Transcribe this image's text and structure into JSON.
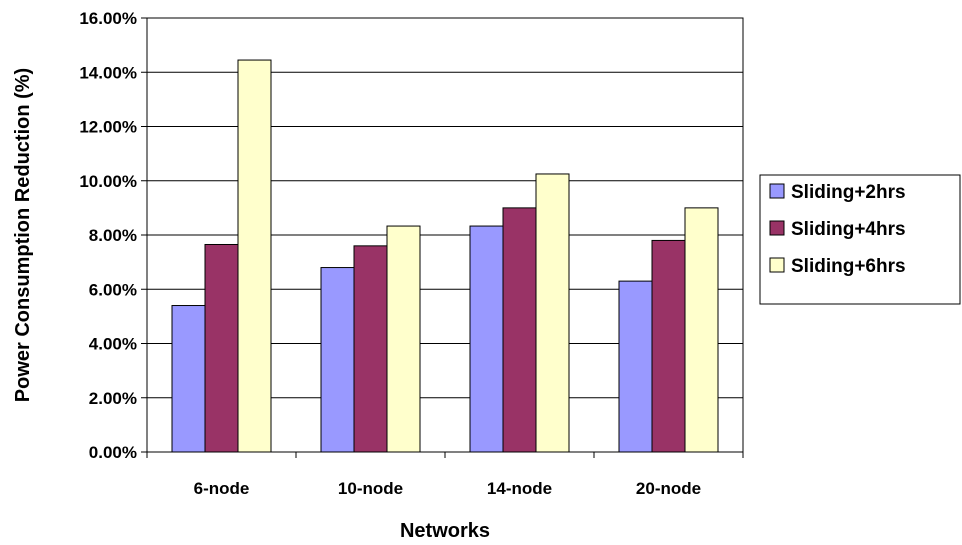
{
  "chart_data": {
    "type": "bar",
    "categories": [
      "6-node",
      "10-node",
      "14-node",
      "20-node"
    ],
    "series": [
      {
        "name": "Sliding+2hrs",
        "values": [
          5.4,
          6.8,
          8.33,
          6.3
        ],
        "color": "#9999ff"
      },
      {
        "name": "Sliding+4hrs",
        "values": [
          7.65,
          7.6,
          9.0,
          7.8
        ],
        "color": "#993366"
      },
      {
        "name": "Sliding+6hrs",
        "values": [
          14.45,
          8.33,
          10.25,
          9.0
        ],
        "color": "#ffffcc"
      }
    ],
    "xlabel": "Networks",
    "ylabel": "Power Consumption Reduction (%)",
    "ylim": [
      0,
      16
    ],
    "ytick_step": 2,
    "ytick_labels": [
      "0.00%",
      "2.00%",
      "4.00%",
      "6.00%",
      "8.00%",
      "10.00%",
      "12.00%",
      "14.00%",
      "16.00%"
    ],
    "grid": true,
    "legend_position": "right"
  }
}
